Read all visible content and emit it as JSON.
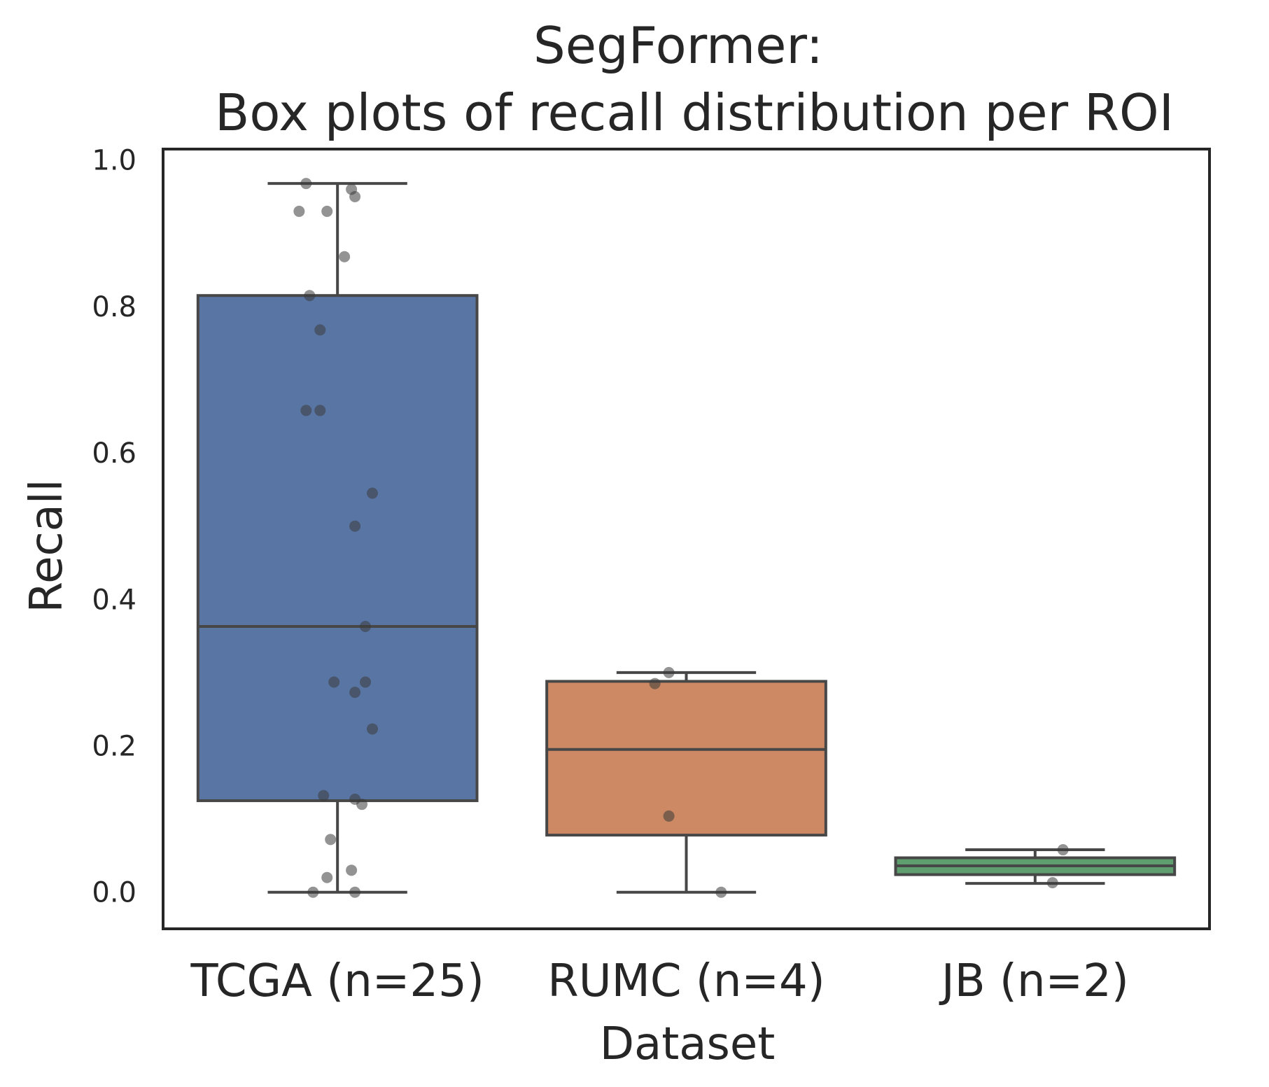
{
  "chart_data": {
    "type": "box",
    "title_line1": "SegFormer:",
    "title_line2": "Box plots of recall distribution per ROI",
    "xlabel": "Dataset",
    "ylabel": "Recall",
    "ylim": [
      -0.05,
      1.015
    ],
    "yticks": [
      "0.0",
      "0.2",
      "0.4",
      "0.6",
      "0.8",
      "1.0"
    ],
    "ytick_values": [
      0.0,
      0.2,
      0.4,
      0.6,
      0.8,
      1.0
    ],
    "grid": false,
    "categories": [
      "TCGA (n=25)",
      "RUMC (n=4)",
      "JB (n=2)"
    ],
    "boxes": [
      {
        "name": "TCGA (n=25)",
        "color": "#5975a4",
        "whisker_low": 0.0,
        "q1": 0.125,
        "median": 0.363,
        "q3": 0.815,
        "whisker_high": 0.968,
        "points": [
          0.968,
          0.96,
          0.95,
          0.93,
          0.93,
          0.868,
          0.815,
          0.768,
          0.658,
          0.658,
          0.545,
          0.5,
          0.363,
          0.287,
          0.287,
          0.273,
          0.223,
          0.132,
          0.127,
          0.12,
          0.072,
          0.03,
          0.02,
          0.0,
          0.0
        ]
      },
      {
        "name": "RUMC (n=4)",
        "color": "#cc8963",
        "whisker_low": 0.0,
        "q1": 0.078,
        "median": 0.195,
        "q3": 0.288,
        "whisker_high": 0.3,
        "points": [
          0.3,
          0.285,
          0.104,
          0.0
        ]
      },
      {
        "name": "JB (n=2)",
        "color": "#5f9e6e",
        "whisker_low": 0.012,
        "q1": 0.024,
        "median": 0.036,
        "q3": 0.047,
        "whisker_high": 0.058,
        "points": [
          0.058,
          0.013
        ]
      }
    ]
  }
}
